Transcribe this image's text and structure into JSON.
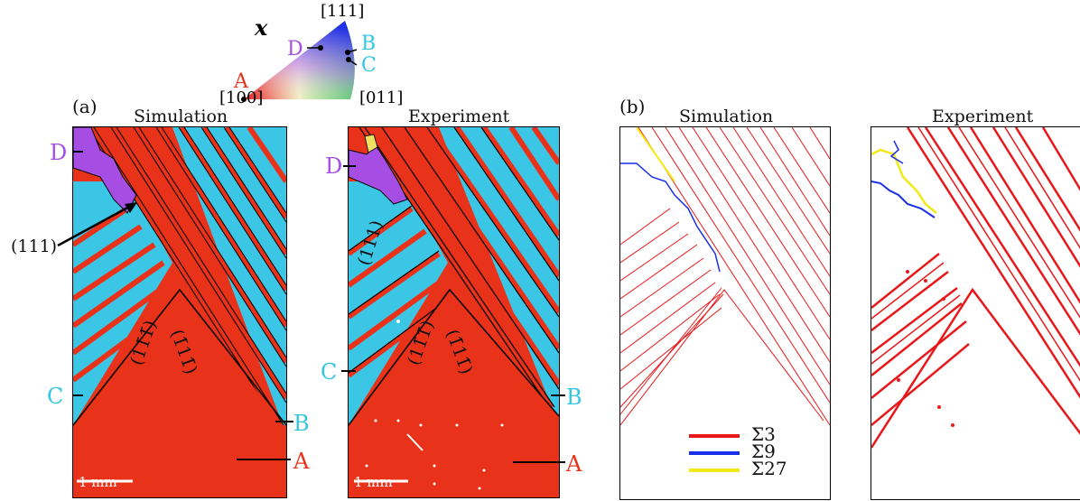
{
  "ipf": {
    "axis": "x",
    "dir111": "[111]",
    "dir100": "[100]",
    "dir011": "[011]",
    "points": [
      "A",
      "B",
      "C",
      "D"
    ]
  },
  "panel_a": {
    "label": "(a)",
    "sim_title": "Simulation",
    "exp_title": "Experiment",
    "plane111": "(111)",
    "plane_left": "(11̄1̄)",
    "plane_right": "(1̄11̄)",
    "scale": "1 mm",
    "points": {
      "A": "A",
      "B": "B",
      "C": "C",
      "D": "D"
    }
  },
  "panel_b": {
    "label": "(b)",
    "sim_title": "Simulation",
    "exp_title": "Experiment",
    "legend": [
      "Σ3",
      "Σ9",
      "Σ27"
    ]
  },
  "colors": {
    "red": "#e8331a",
    "cyan": "#3cc6e6",
    "purple": "#a64de3",
    "sigma3": "#e8181a",
    "sigma9": "#1a2fe8",
    "sigma27": "#f2ea16"
  }
}
